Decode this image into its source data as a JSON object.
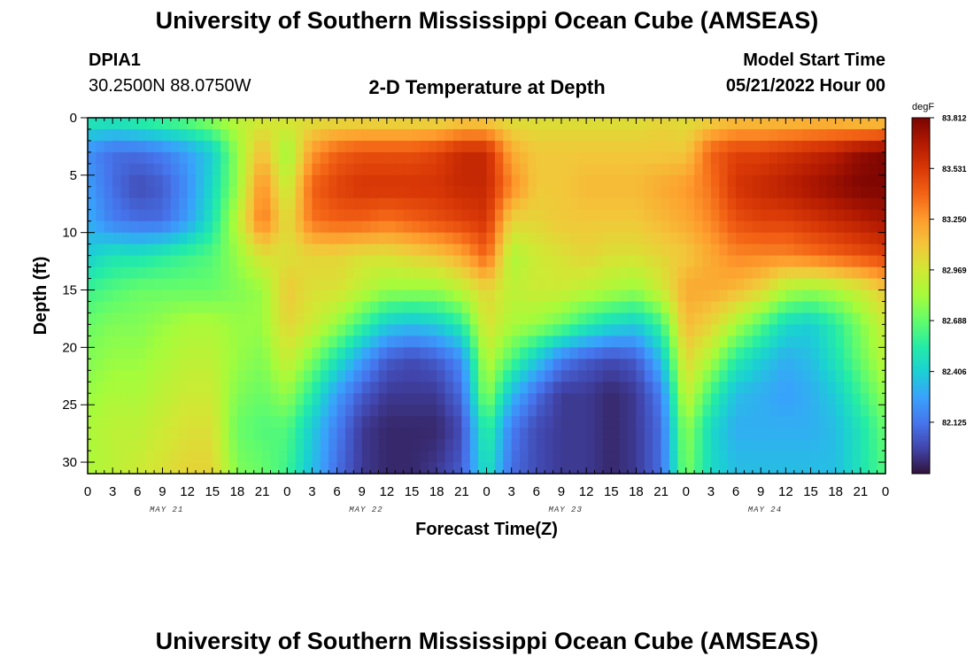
{
  "header": {
    "title": "University of Southern Mississippi Ocean Cube (AMSEAS)",
    "station_id": "DPIA1",
    "station_coords": "30.2500N  88.0750W",
    "plot_title": "2-D Temperature at Depth",
    "model_start_label": "Model Start Time",
    "model_start_value": "05/21/2022 Hour 00"
  },
  "footer": {
    "title": "University of Southern Mississippi Ocean Cube (AMSEAS)"
  },
  "chart_data": {
    "type": "heatmap",
    "xlabel": "Forecast Time(Z)",
    "ylabel": "Depth (ft)",
    "x_tick_labels": [
      "0",
      "3",
      "6",
      "9",
      "12",
      "15",
      "18",
      "21",
      "0",
      "3",
      "6",
      "9",
      "12",
      "15",
      "18",
      "21",
      "0",
      "3",
      "6",
      "9",
      "12",
      "15",
      "18",
      "21",
      "0",
      "3",
      "6",
      "9",
      "12",
      "15",
      "18",
      "21",
      "0"
    ],
    "day_labels": [
      "MAY 21",
      "MAY 22",
      "MAY 23",
      "MAY 24"
    ],
    "xlim_hours": [
      0,
      96
    ],
    "ylim_ft": [
      0,
      31
    ],
    "y_ticks": [
      0,
      5,
      10,
      15,
      20,
      25,
      30
    ],
    "colorbar": {
      "unit": "degF",
      "vmin": 81.84,
      "vmax": 83.812,
      "tick_labels": [
        "83.812",
        "83.531",
        "83.250",
        "82.969",
        "82.688",
        "82.406",
        "82.125"
      ],
      "colors": [
        "#30123b",
        "#4145ab",
        "#4675ed",
        "#39a2fc",
        "#1bcfd4",
        "#24eca6",
        "#61fc6c",
        "#a4fc3b",
        "#d1e834",
        "#f3c63a",
        "#fe9b2d",
        "#f36315",
        "#d93806",
        "#b11901",
        "#7a0402"
      ]
    },
    "depth_levels_ft": [
      0,
      3,
      6,
      9,
      12,
      15,
      18,
      21,
      24,
      27,
      31
    ],
    "time_points_h": [
      0,
      3,
      6,
      9,
      12,
      15,
      18,
      21,
      24,
      27,
      30,
      33,
      36,
      39,
      42,
      45,
      48,
      51,
      54,
      57,
      60,
      63,
      66,
      69,
      72,
      75,
      78,
      81,
      84,
      87,
      90,
      93,
      96
    ],
    "temperature_degF": [
      [
        82.55,
        82.55,
        82.6,
        82.65,
        82.7,
        82.8,
        82.9,
        82.95,
        83.0,
        83.0,
        83.0,
        83.0,
        83.0,
        83.0,
        83.0,
        83.05,
        83.05,
        83.0,
        83.0,
        83.0,
        83.0,
        83.0,
        83.0,
        83.05,
        83.0,
        83.05,
        83.1,
        83.1,
        83.1,
        83.1,
        83.1,
        83.05,
        83.05
      ],
      [
        82.2,
        82.1,
        82.1,
        82.15,
        82.25,
        82.4,
        82.8,
        83.15,
        82.8,
        83.25,
        83.4,
        83.45,
        83.45,
        83.45,
        83.5,
        83.6,
        83.6,
        83.2,
        83.1,
        83.1,
        83.1,
        83.1,
        83.1,
        83.1,
        83.1,
        83.4,
        83.5,
        83.5,
        83.55,
        83.6,
        83.65,
        83.75,
        83.8
      ],
      [
        82.25,
        82.1,
        82.0,
        82.05,
        82.2,
        82.45,
        82.8,
        83.3,
        82.9,
        83.4,
        83.5,
        83.55,
        83.55,
        83.55,
        83.55,
        83.6,
        83.6,
        83.3,
        83.1,
        83.1,
        83.15,
        83.15,
        83.15,
        83.2,
        83.25,
        83.35,
        83.55,
        83.6,
        83.65,
        83.7,
        83.75,
        83.8,
        83.8
      ],
      [
        82.3,
        82.15,
        82.1,
        82.1,
        82.25,
        82.5,
        82.9,
        83.35,
        83.0,
        83.35,
        83.4,
        83.4,
        83.35,
        83.4,
        83.45,
        83.5,
        83.55,
        83.05,
        83.05,
        83.1,
        83.1,
        83.1,
        83.1,
        83.15,
        83.2,
        83.3,
        83.45,
        83.5,
        83.5,
        83.55,
        83.6,
        83.65,
        83.7
      ],
      [
        82.4,
        82.5,
        82.5,
        82.55,
        82.6,
        82.65,
        82.8,
        83.0,
        83.0,
        83.05,
        83.05,
        83.0,
        83.0,
        83.05,
        83.1,
        83.2,
        83.4,
        82.85,
        82.95,
        83.0,
        83.05,
        83.0,
        83.0,
        83.05,
        83.1,
        83.2,
        83.3,
        83.3,
        83.3,
        83.35,
        83.4,
        83.45,
        83.5
      ],
      [
        82.6,
        82.65,
        82.7,
        82.7,
        82.7,
        82.7,
        82.75,
        82.8,
        83.1,
        83.0,
        83.0,
        82.9,
        82.8,
        82.8,
        82.8,
        82.9,
        83.05,
        82.9,
        82.95,
        82.95,
        82.9,
        82.85,
        82.8,
        82.95,
        83.2,
        83.2,
        83.15,
        83.05,
        82.85,
        82.8,
        82.85,
        82.95,
        83.1
      ],
      [
        82.7,
        82.75,
        82.75,
        82.8,
        82.85,
        82.85,
        82.8,
        82.8,
        83.05,
        82.95,
        82.8,
        82.6,
        82.4,
        82.35,
        82.4,
        82.55,
        83.0,
        82.85,
        82.8,
        82.7,
        82.55,
        82.45,
        82.4,
        82.6,
        83.15,
        83.05,
        82.85,
        82.65,
        82.45,
        82.4,
        82.55,
        82.75,
        82.95
      ],
      [
        82.75,
        82.8,
        82.8,
        82.85,
        82.9,
        82.9,
        82.8,
        82.75,
        82.95,
        82.75,
        82.5,
        82.25,
        82.05,
        82.0,
        82.05,
        82.2,
        82.9,
        82.65,
        82.4,
        82.15,
        82.05,
        82.0,
        82.05,
        82.35,
        83.05,
        82.85,
        82.55,
        82.4,
        82.3,
        82.35,
        82.5,
        82.7,
        82.9
      ],
      [
        82.8,
        82.85,
        82.85,
        82.9,
        82.95,
        82.95,
        82.75,
        82.7,
        82.8,
        82.55,
        82.25,
        82.05,
        81.95,
        81.95,
        81.95,
        82.1,
        82.8,
        82.35,
        82.1,
        81.95,
        81.95,
        81.9,
        81.95,
        82.15,
        82.95,
        82.6,
        82.35,
        82.3,
        82.25,
        82.3,
        82.4,
        82.6,
        82.8
      ],
      [
        82.85,
        82.9,
        82.9,
        82.95,
        83.0,
        83.0,
        82.7,
        82.65,
        82.65,
        82.4,
        82.15,
        81.95,
        81.9,
        81.9,
        81.9,
        82.0,
        82.6,
        82.15,
        82.0,
        81.95,
        81.95,
        81.9,
        81.95,
        82.1,
        82.8,
        82.45,
        82.3,
        82.3,
        82.3,
        82.3,
        82.35,
        82.5,
        82.7
      ],
      [
        82.85,
        82.9,
        82.95,
        83.0,
        83.05,
        83.05,
        82.75,
        82.7,
        82.6,
        82.35,
        82.1,
        81.95,
        81.9,
        81.9,
        81.95,
        82.05,
        82.5,
        82.1,
        82.0,
        81.95,
        81.95,
        81.9,
        81.95,
        82.1,
        82.75,
        82.45,
        82.35,
        82.35,
        82.35,
        82.35,
        82.35,
        82.5,
        82.65
      ]
    ]
  }
}
